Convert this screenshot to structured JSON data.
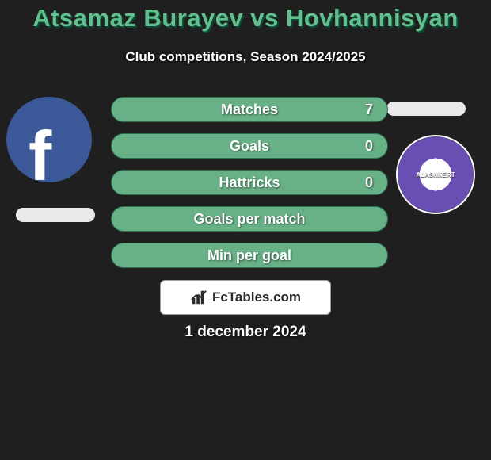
{
  "background_color": "#1f1f1f",
  "title": {
    "text": "Atsamaz Burayev vs Hovhannisyan",
    "color": "#64bf8f",
    "fontsize": 31,
    "shadow": "2px 2px 0 #0c4a33"
  },
  "subtitle": {
    "text": "Club competitions, Season 2024/2025",
    "color": "#ffffff",
    "fontsize": 17,
    "shadow": "1px 1px 2px #000000"
  },
  "left_badge": {
    "label": "facebook-avatar",
    "letter": "f",
    "bg": "#3b5998",
    "size": 108,
    "letter_size": 88
  },
  "right_badge": {
    "label": "alashkert-club-logo",
    "text": "ALASHKERT"
  },
  "pill_color": "#e9e9e9",
  "bars": {
    "fill_color": "#68b187",
    "border_color": "#2e6e52",
    "text_color": "#ffffff",
    "label_fontsize": 18,
    "value_fontsize": 18,
    "items": [
      {
        "label": "Matches",
        "value": "7"
      },
      {
        "label": "Goals",
        "value": "0"
      },
      {
        "label": "Hattricks",
        "value": "0"
      },
      {
        "label": "Goals per match",
        "value": ""
      },
      {
        "label": "Min per goal",
        "value": ""
      }
    ]
  },
  "footer": {
    "logo_text": "FcTables.com",
    "box_bg": "#ffffff",
    "box_border": "#9aa0a6",
    "text_color": "#2b2b2b",
    "fontsize": 17
  },
  "date": {
    "text": "1 december 2024",
    "color": "#ffffff",
    "fontsize": 19
  }
}
